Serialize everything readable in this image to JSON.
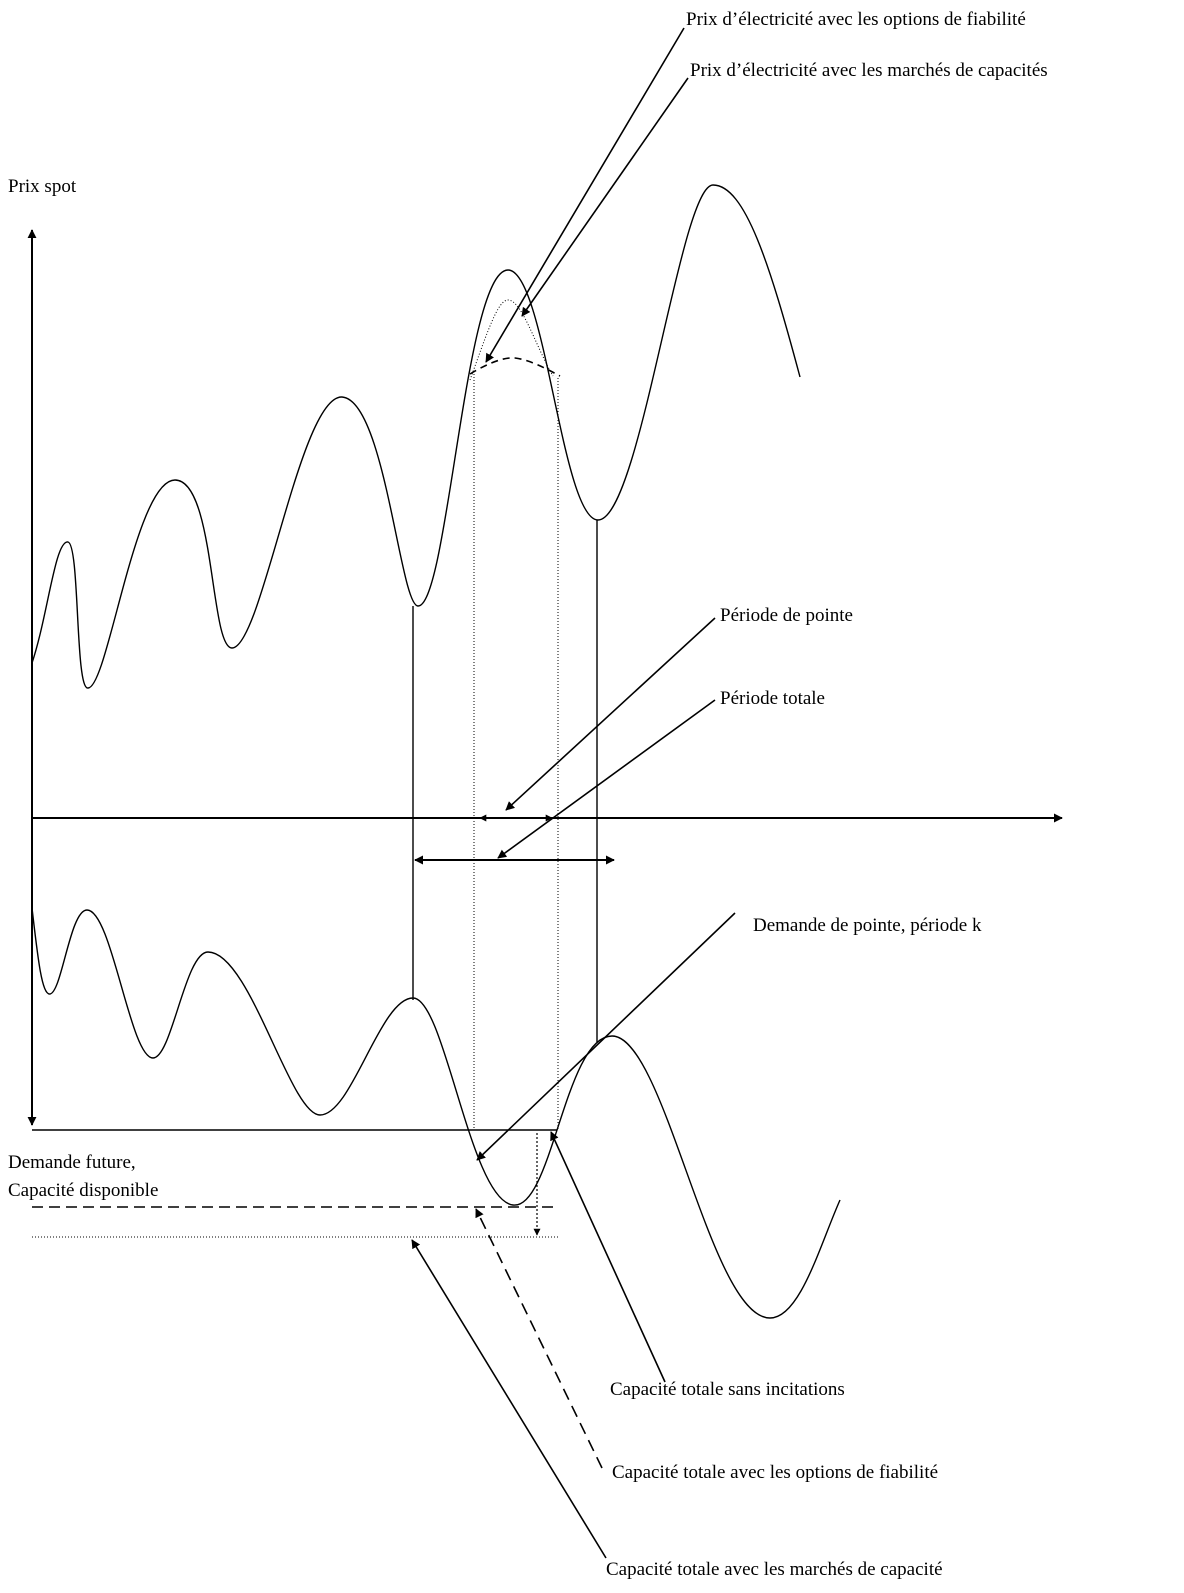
{
  "axes": {
    "price_label": "Prix spot",
    "demand_label_line1": "Demande future,",
    "demand_label_line2": "Capacité disponible"
  },
  "annotations": {
    "price_reliability_options": "Prix d’électricité avec les options de fiabilité",
    "price_capacity_markets": "Prix d’électricité avec les marchés de capacités",
    "peak_period": "Période de pointe",
    "total_period": "Période totale",
    "peak_demand": "Demande de pointe, période k",
    "capacity_no_incentives": "Capacité totale sans incitations",
    "capacity_reliability_options": "Capacité totale avec les options de fiabilité",
    "capacity_markets": "Capacité totale avec les marchés de capacité"
  },
  "colors": {
    "ink": "#000000",
    "background": "#ffffff"
  }
}
